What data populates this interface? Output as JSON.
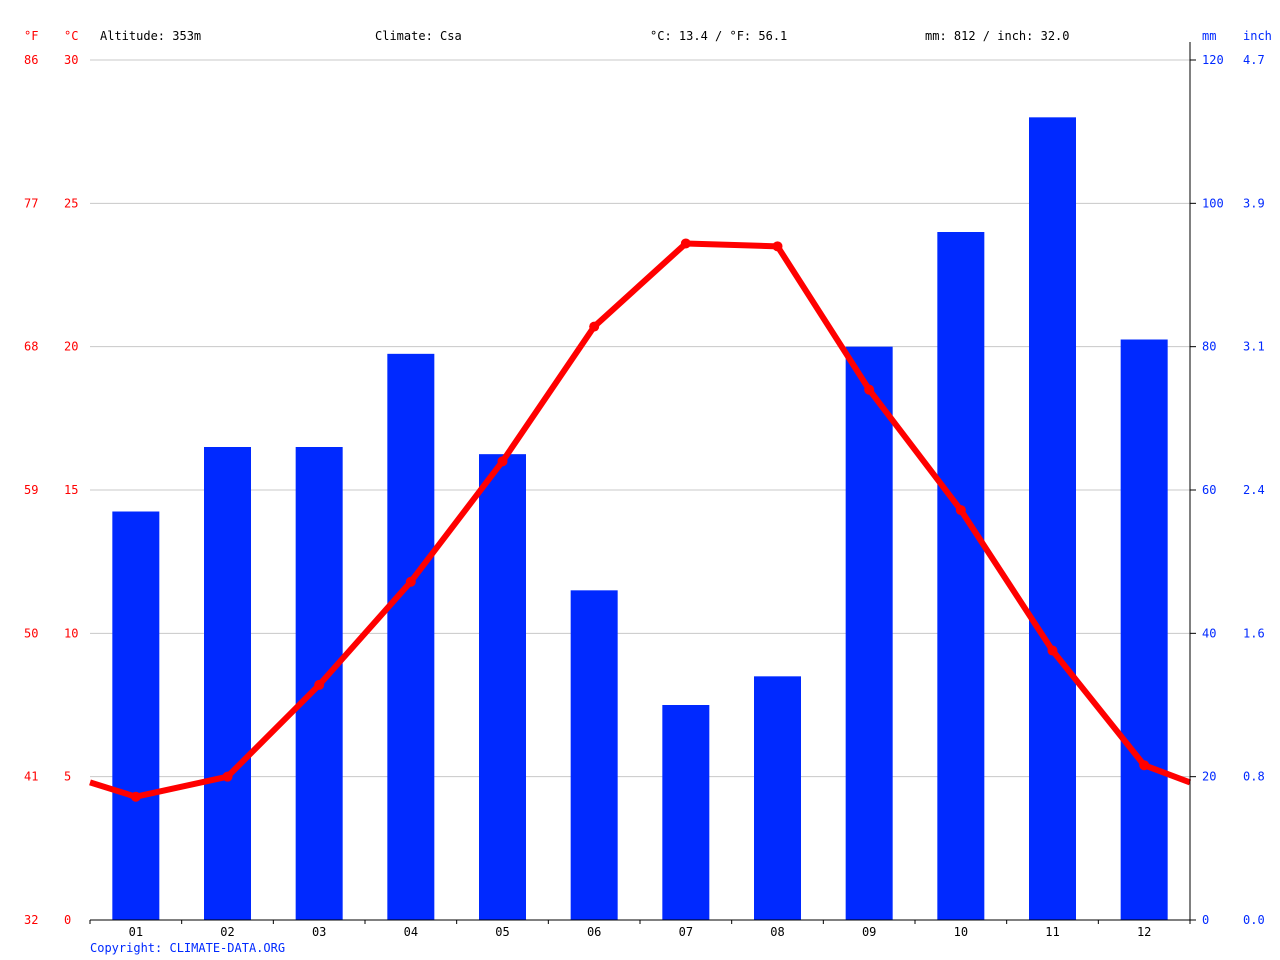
{
  "header": {
    "unit_f": "°F",
    "unit_c": "°C",
    "altitude": "Altitude: 353m",
    "climate": "Climate: Csa",
    "temp_avg": "°C: 13.4 / °F: 56.1",
    "precip_total": "mm: 812 / inch: 32.0",
    "unit_mm": "mm",
    "unit_inch": "inch"
  },
  "copyright": "Copyright: CLIMATE-DATA.ORG",
  "colors": {
    "temperature": "#ff0000",
    "precipitation": "#0029ff",
    "grid": "#c8c8c8"
  },
  "chart_data": {
    "type": "bar",
    "categories": [
      "01",
      "02",
      "03",
      "04",
      "05",
      "06",
      "07",
      "08",
      "09",
      "10",
      "11",
      "12"
    ],
    "series": [
      {
        "type": "bar",
        "axis": "right",
        "values": [
          57,
          66,
          66,
          79,
          65,
          46,
          30,
          34,
          80,
          96,
          112,
          81
        ]
      },
      {
        "type": "line",
        "axis": "left",
        "values": [
          4.3,
          5.0,
          8.2,
          11.8,
          16.0,
          20.7,
          23.6,
          23.5,
          18.5,
          14.3,
          9.4,
          5.4
        ]
      }
    ],
    "line_extension": {
      "start": 4.8,
      "end": 4.8
    },
    "left_axis": {
      "c_ticks": [
        "30",
        "25",
        "20",
        "15",
        "10",
        "5",
        "0"
      ],
      "f_ticks": [
        "86",
        "77",
        "68",
        "59",
        "50",
        "41",
        "32"
      ],
      "ylim": [
        0,
        30
      ]
    },
    "right_axis": {
      "mm_ticks": [
        "120",
        "100",
        "80",
        "60",
        "40",
        "20",
        "0"
      ],
      "inch_ticks": [
        "4.7",
        "3.9",
        "3.1",
        "2.4",
        "1.6",
        "0.8",
        "0.0"
      ],
      "ylim": [
        0,
        120
      ]
    },
    "grid": true
  }
}
